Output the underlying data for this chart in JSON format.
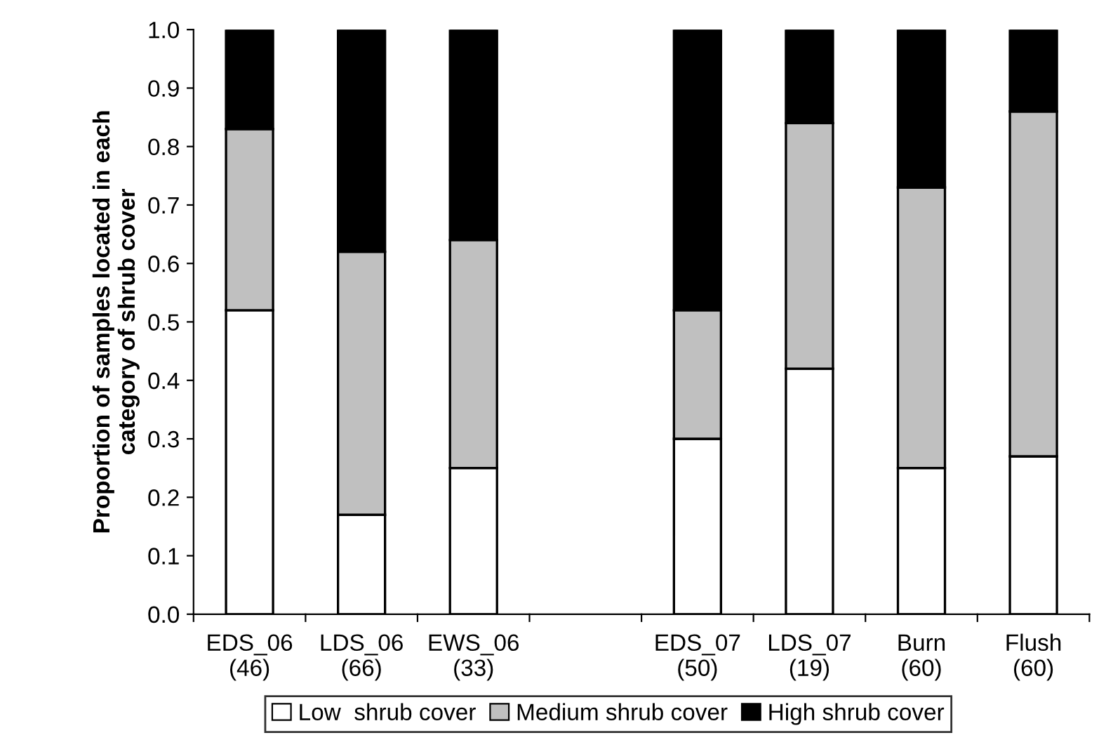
{
  "chart_data": {
    "type": "bar",
    "stacked": true,
    "ylabel": "Proportion of samples located in each\ncategory of shrub cover",
    "categories": [
      "EDS_06\n(46)",
      "LDS_06\n(66)",
      "EWS_06\n(33)",
      null,
      "EDS_07\n(50)",
      "LDS_07\n(19)",
      "Burn\n(60)",
      "Flush\n(60)"
    ],
    "series": [
      {
        "name": "Low  shrub cover",
        "color": "#ffffff",
        "values": [
          0.52,
          0.17,
          0.25,
          null,
          0.3,
          0.42,
          0.25,
          0.27
        ]
      },
      {
        "name": "Medium shrub cover",
        "color": "#c0c0c0",
        "values": [
          0.31,
          0.45,
          0.39,
          null,
          0.22,
          0.42,
          0.48,
          0.59
        ]
      },
      {
        "name": "High shrub cover",
        "color": "#000000",
        "values": [
          0.17,
          0.38,
          0.36,
          null,
          0.48,
          0.16,
          0.27,
          0.14
        ]
      }
    ],
    "ylim": [
      0,
      1
    ],
    "yticks": [
      {
        "value": 0,
        "label": "0.0"
      },
      0.1,
      0.2,
      0.3,
      0.4,
      0.5,
      0.6,
      0.7,
      0.8,
      0.9,
      {
        "value": 1,
        "label": "1.0"
      }
    ],
    "grid": false,
    "legend": "bottom"
  }
}
